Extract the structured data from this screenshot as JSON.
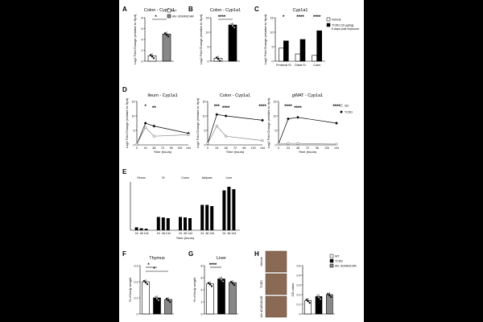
{
  "figure": {
    "panel_labels": [
      "A",
      "B",
      "C",
      "D",
      "E",
      "F",
      "G",
      "H"
    ]
  },
  "chart_data": [
    {
      "id": "A",
      "type": "bar",
      "title": "Colon - Cyp1a1",
      "ylabel": "Log2 Fold Change (relative to Hprt)",
      "categories": [
        "WT",
        "Ahr dCAR/dCAR"
      ],
      "values": [
        1.0,
        5.0
      ],
      "colors": [
        "#ffffff",
        "#888888"
      ],
      "ylim": [
        0,
        8
      ],
      "legend": [
        "WT",
        "Ahr dCAR/dCAR"
      ],
      "significance": [
        "*"
      ]
    },
    {
      "id": "B",
      "type": "bar",
      "title": "Colon - Cyp1a1",
      "ylabel": "Log2 Fold Change (relative to Hprt)",
      "categories": [
        "Vehicle",
        "TCDD"
      ],
      "values": [
        1.0,
        12.5
      ],
      "colors": [
        "#ffffff",
        "#000000"
      ],
      "ylim": [
        0,
        15
      ],
      "significance": [
        "****"
      ]
    },
    {
      "id": "C",
      "type": "bar",
      "title": "Cyp1a1",
      "ylabel": "Log2 Fold Change (relative to Hprt)",
      "categories": [
        "Proximal SI",
        "Distal SI",
        "Colon"
      ],
      "series": [
        {
          "name": "Vehicle",
          "values": [
            4.5,
            2.5,
            2.0
          ],
          "color": "#ffffff"
        },
        {
          "name": "TCDD (10 μg/kg),",
          "values": [
            7.0,
            7.5,
            10.5
          ],
          "color": "#000000"
        }
      ],
      "legend_note": "6 days post exposure",
      "ylim": [
        0,
        15
      ],
      "significance": [
        "*",
        "****",
        "****"
      ]
    },
    {
      "id": "D1",
      "type": "line",
      "title": "Ileum - Cyp1a1",
      "xlabel": "Time (hours)",
      "ylabel": "Log2 Fold Change (relative to Hprt)",
      "x": [
        0,
        24,
        48,
        72,
        96,
        120,
        144
      ],
      "xticks": [
        "0",
        "24",
        "48",
        "72",
        "96",
        "120",
        "144"
      ],
      "series": [
        {
          "name": "TCDD",
          "x": [
            0,
            24,
            48,
            144
          ],
          "values": [
            0.2,
            7.5,
            6.5,
            4.0
          ]
        },
        {
          "name": "I3C",
          "x": [
            0,
            24,
            48,
            144
          ],
          "values": [
            0.2,
            6.0,
            3.0,
            3.5
          ]
        }
      ],
      "ylim": [
        0,
        15
      ],
      "significance": [
        "*",
        "**"
      ]
    },
    {
      "id": "D2",
      "type": "line",
      "title": "Colon - Cyp1a1",
      "xlabel": "Time (hours)",
      "ylabel": "Log2 Fold Change (relative to Hprt)",
      "x": [
        0,
        24,
        48,
        72,
        96,
        120,
        144
      ],
      "xticks": [
        "0",
        "24",
        "48",
        "72",
        "96",
        "120",
        "144"
      ],
      "series": [
        {
          "name": "TCDD",
          "x": [
            0,
            24,
            48,
            144
          ],
          "values": [
            0.5,
            10.5,
            10.0,
            8.5
          ]
        },
        {
          "name": "I3C",
          "x": [
            0,
            24,
            48,
            144
          ],
          "values": [
            0.5,
            6.5,
            3.0,
            1.5
          ]
        }
      ],
      "ylim": [
        0,
        15
      ],
      "significance": [
        "***",
        "****",
        "****"
      ]
    },
    {
      "id": "D3",
      "type": "line",
      "title": "gWAT - Cyp1a1",
      "xlabel": "Time (hours)",
      "ylabel": "Log2 Fold Change (relative to Hprt)",
      "x": [
        0,
        24,
        48,
        72,
        96,
        120,
        144
      ],
      "xticks": [
        "0",
        "24",
        "48",
        "72",
        "96",
        "120",
        "144"
      ],
      "series": [
        {
          "name": "TCDD",
          "x": [
            0,
            24,
            48,
            144
          ],
          "values": [
            0.3,
            9.0,
            9.5,
            7.5
          ]
        },
        {
          "name": "I3C",
          "x": [
            0,
            24,
            48,
            144
          ],
          "values": [
            0.3,
            0.5,
            0.5,
            0.3
          ]
        }
      ],
      "legend": [
        "I3C",
        "TCDD"
      ],
      "ylim": [
        0,
        15
      ],
      "significance": [
        "****",
        "****",
        "****"
      ]
    },
    {
      "id": "E",
      "type": "bar",
      "xlabel": "Time (hours)",
      "groups": [
        "Serum",
        "SI",
        "Colon",
        "Adipose",
        "Liver"
      ],
      "categories": [
        "24",
        "48",
        "144"
      ],
      "series": [
        {
          "name": "Serum",
          "values": [
            1.2,
            0.8,
            0.6
          ]
        },
        {
          "name": "SI",
          "values": [
            5.5,
            5.3,
            5.0
          ]
        },
        {
          "name": "Colon",
          "values": [
            5.5,
            5.3,
            5.0
          ]
        },
        {
          "name": "Adipose",
          "values": [
            10.5,
            10.5,
            10.0
          ]
        },
        {
          "name": "Liver",
          "values": [
            16.5,
            18.0,
            17.0
          ]
        }
      ],
      "ylim": [
        0,
        20
      ]
    },
    {
      "id": "F",
      "type": "bar",
      "title": "Thymus",
      "ylabel": "% of body weight",
      "categories": [
        "WT",
        "TCDD",
        "Ahr dCAR/dCAR"
      ],
      "values": [
        0.2,
        0.1,
        0.09
      ],
      "colors": [
        "#ffffff",
        "#000000",
        "#888888"
      ],
      "ylim": [
        0,
        0.3
      ],
      "significance": [
        "*",
        "*"
      ]
    },
    {
      "id": "G",
      "type": "bar",
      "title": "Liver",
      "ylabel": "% of body weight",
      "categories": [
        "WT",
        "TCDD",
        "Ahr dCAR/dCAR"
      ],
      "values": [
        5.0,
        5.8,
        5.2
      ],
      "colors": [
        "#ffffff",
        "#000000",
        "#888888"
      ],
      "ylim": [
        0,
        8
      ],
      "significance": [
        "****"
      ]
    },
    {
      "id": "H",
      "type": "bar",
      "ylabel": "OD value",
      "categories": [
        "WT",
        "TCDD",
        "Ahr dCAR/dCAR"
      ],
      "values": [
        0.14,
        0.18,
        0.2
      ],
      "colors": [
        "#ffffff",
        "#000000",
        "#888888"
      ],
      "ylim": [
        0,
        0.5
      ],
      "legend": [
        "WT",
        "TCDD",
        "Ahr dCAR/dCAR"
      ],
      "image_labels": [
        "Vehicle",
        "TCDD",
        "Ahr dCAR/dCAR"
      ]
    }
  ]
}
